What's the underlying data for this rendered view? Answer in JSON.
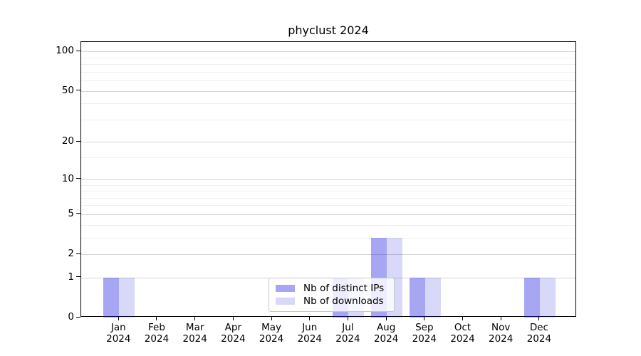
{
  "figure": {
    "title": "phyclust 2024",
    "background": "#ffffff"
  },
  "chart_data": {
    "type": "bar",
    "title": "phyclust 2024",
    "categories": [
      "Jan",
      "Feb",
      "Mar",
      "Apr",
      "May",
      "Jun",
      "Jul",
      "Aug",
      "Sep",
      "Oct",
      "Nov",
      "Dec"
    ],
    "category_year": "2024",
    "series": [
      {
        "name": "Nb of distinct IPs",
        "color": "rgba(33,33,223,0.40)",
        "values": [
          1,
          0,
          0,
          0,
          0,
          0,
          1,
          3,
          1,
          0,
          0,
          1
        ]
      },
      {
        "name": "Nb of downloads",
        "color": "rgba(38,38,216,0.18)",
        "values": [
          1,
          0,
          0,
          0,
          0,
          0,
          1,
          3,
          1,
          0,
          0,
          1
        ]
      }
    ],
    "xlabel": "",
    "ylabel": "",
    "yscale": "log1p",
    "ylim": [
      0,
      118
    ],
    "yticks_major": [
      0,
      1,
      2,
      5,
      10,
      20,
      50,
      100
    ],
    "yticks_minor": [
      3,
      4,
      6,
      7,
      8,
      9,
      15,
      30,
      40,
      60,
      70,
      80,
      90
    ],
    "grid": "horizontal",
    "legend": {
      "position": "lower center",
      "items": [
        "Nb of distinct IPs",
        "Nb of downloads"
      ]
    }
  },
  "colors": {
    "axis": "#000000",
    "grid_major": "#d5d5d5",
    "grid_minor": "#efefef",
    "legend_border": "#c8c8c8",
    "legend_background": "rgba(255,255,255,0.8)",
    "text": "#000000"
  }
}
